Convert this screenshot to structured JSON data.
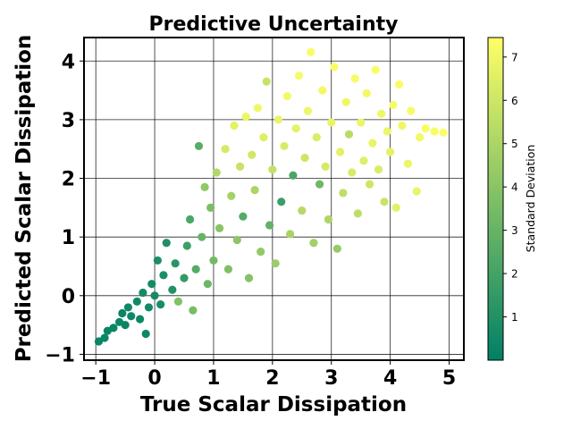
{
  "chart_data": {
    "type": "scatter",
    "title": "Predictive Uncertainty",
    "xlabel": "True Scalar Dissipation",
    "ylabel": "Predicted Scalar Dissipation",
    "xlim": [
      -1.2,
      5.25
    ],
    "ylim": [
      -1.1,
      4.4
    ],
    "x_ticks": [
      -1,
      0,
      1,
      2,
      3,
      4,
      5
    ],
    "y_ticks": [
      -1,
      0,
      1,
      2,
      3,
      4
    ],
    "grid": true,
    "colorbar": {
      "label": "Standard Deviation",
      "range": [
        0,
        7.45
      ],
      "ticks": [
        1,
        2,
        3,
        4,
        5,
        6,
        7
      ],
      "colormap": "summer",
      "color_low": "#008066",
      "color_high": "#ffff66"
    },
    "points": [
      {
        "x": -0.95,
        "y": -0.78,
        "s": 0.3
      },
      {
        "x": -0.85,
        "y": -0.72,
        "s": 0.3
      },
      {
        "x": -0.8,
        "y": -0.6,
        "s": 0.3
      },
      {
        "x": -0.7,
        "y": -0.55,
        "s": 0.3
      },
      {
        "x": -0.6,
        "y": -0.45,
        "s": 0.4
      },
      {
        "x": -0.55,
        "y": -0.3,
        "s": 0.3
      },
      {
        "x": -0.5,
        "y": -0.5,
        "s": 0.3
      },
      {
        "x": -0.45,
        "y": -0.2,
        "s": 0.5
      },
      {
        "x": -0.4,
        "y": -0.35,
        "s": 0.4
      },
      {
        "x": -0.3,
        "y": -0.1,
        "s": 0.5
      },
      {
        "x": -0.25,
        "y": -0.4,
        "s": 0.4
      },
      {
        "x": -0.2,
        "y": 0.05,
        "s": 0.6
      },
      {
        "x": -0.15,
        "y": -0.65,
        "s": 0.4
      },
      {
        "x": -0.1,
        "y": -0.2,
        "s": 0.5
      },
      {
        "x": -0.05,
        "y": 0.2,
        "s": 0.6
      },
      {
        "x": 0.0,
        "y": 0.0,
        "s": 0.6
      },
      {
        "x": 0.05,
        "y": 0.6,
        "s": 0.8
      },
      {
        "x": 0.1,
        "y": -0.15,
        "s": 0.7
      },
      {
        "x": 0.15,
        "y": 0.35,
        "s": 0.8
      },
      {
        "x": 0.2,
        "y": 0.9,
        "s": 0.9
      },
      {
        "x": 0.3,
        "y": 0.1,
        "s": 1.0
      },
      {
        "x": 0.35,
        "y": 0.55,
        "s": 1.2
      },
      {
        "x": 0.4,
        "y": -0.1,
        "s": 3.8
      },
      {
        "x": 0.5,
        "y": 0.3,
        "s": 1.5
      },
      {
        "x": 0.55,
        "y": 0.85,
        "s": 1.8
      },
      {
        "x": 0.6,
        "y": 1.3,
        "s": 2.2
      },
      {
        "x": 0.65,
        "y": -0.25,
        "s": 3.5
      },
      {
        "x": 0.7,
        "y": 0.45,
        "s": 2.5
      },
      {
        "x": 0.75,
        "y": 2.55,
        "s": 2.6
      },
      {
        "x": 0.8,
        "y": 1.0,
        "s": 3.0
      },
      {
        "x": 0.85,
        "y": 1.85,
        "s": 4.2
      },
      {
        "x": 0.9,
        "y": 0.2,
        "s": 3.2
      },
      {
        "x": 0.95,
        "y": 1.5,
        "s": 3.6
      },
      {
        "x": 1.0,
        "y": 0.6,
        "s": 3.4
      },
      {
        "x": 1.05,
        "y": 2.1,
        "s": 5.2
      },
      {
        "x": 1.1,
        "y": 1.15,
        "s": 4.0
      },
      {
        "x": 1.2,
        "y": 2.5,
        "s": 6.2
      },
      {
        "x": 1.25,
        "y": 0.45,
        "s": 3.7
      },
      {
        "x": 1.3,
        "y": 1.7,
        "s": 4.8
      },
      {
        "x": 1.35,
        "y": 2.9,
        "s": 6.6
      },
      {
        "x": 1.4,
        "y": 0.95,
        "s": 4.1
      },
      {
        "x": 1.45,
        "y": 2.2,
        "s": 5.8
      },
      {
        "x": 1.5,
        "y": 1.35,
        "s": 2.5
      },
      {
        "x": 1.55,
        "y": 3.05,
        "s": 6.9
      },
      {
        "x": 1.6,
        "y": 0.3,
        "s": 3.9
      },
      {
        "x": 1.65,
        "y": 2.4,
        "s": 6.1
      },
      {
        "x": 1.7,
        "y": 1.8,
        "s": 5.0
      },
      {
        "x": 1.75,
        "y": 3.2,
        "s": 7.0
      },
      {
        "x": 1.8,
        "y": 0.75,
        "s": 4.3
      },
      {
        "x": 1.85,
        "y": 2.7,
        "s": 6.5
      },
      {
        "x": 1.9,
        "y": 3.65,
        "s": 5.8
      },
      {
        "x": 1.95,
        "y": 1.2,
        "s": 2.9
      },
      {
        "x": 2.0,
        "y": 2.15,
        "s": 5.7
      },
      {
        "x": 2.05,
        "y": 0.55,
        "s": 4.5
      },
      {
        "x": 2.1,
        "y": 3.0,
        "s": 6.8
      },
      {
        "x": 2.15,
        "y": 1.6,
        "s": 1.8
      },
      {
        "x": 2.2,
        "y": 2.55,
        "s": 6.3
      },
      {
        "x": 2.25,
        "y": 3.4,
        "s": 7.1
      },
      {
        "x": 2.3,
        "y": 1.05,
        "s": 4.9
      },
      {
        "x": 2.35,
        "y": 2.05,
        "s": 2.2
      },
      {
        "x": 2.4,
        "y": 2.85,
        "s": 6.7
      },
      {
        "x": 2.45,
        "y": 3.75,
        "s": 7.2
      },
      {
        "x": 2.5,
        "y": 1.45,
        "s": 5.3
      },
      {
        "x": 2.55,
        "y": 2.35,
        "s": 6.0
      },
      {
        "x": 2.6,
        "y": 3.15,
        "s": 6.9
      },
      {
        "x": 2.65,
        "y": 4.15,
        "s": 7.3
      },
      {
        "x": 2.7,
        "y": 0.9,
        "s": 4.7
      },
      {
        "x": 2.75,
        "y": 2.7,
        "s": 6.4
      },
      {
        "x": 2.8,
        "y": 1.9,
        "s": 3.3
      },
      {
        "x": 2.85,
        "y": 3.5,
        "s": 7.1
      },
      {
        "x": 2.9,
        "y": 2.2,
        "s": 6.2
      },
      {
        "x": 2.95,
        "y": 1.3,
        "s": 5.1
      },
      {
        "x": 3.0,
        "y": 2.95,
        "s": 6.8
      },
      {
        "x": 3.05,
        "y": 3.9,
        "s": 7.3
      },
      {
        "x": 3.1,
        "y": 0.8,
        "s": 4.4
      },
      {
        "x": 3.15,
        "y": 2.45,
        "s": 6.6
      },
      {
        "x": 3.2,
        "y": 1.75,
        "s": 5.6
      },
      {
        "x": 3.25,
        "y": 3.3,
        "s": 7.0
      },
      {
        "x": 3.3,
        "y": 2.75,
        "s": 5.4
      },
      {
        "x": 3.35,
        "y": 2.1,
        "s": 6.3
      },
      {
        "x": 3.4,
        "y": 3.7,
        "s": 7.2
      },
      {
        "x": 3.45,
        "y": 1.4,
        "s": 5.5
      },
      {
        "x": 3.5,
        "y": 2.95,
        "s": 6.9
      },
      {
        "x": 3.55,
        "y": 2.3,
        "s": 6.5
      },
      {
        "x": 3.6,
        "y": 3.45,
        "s": 7.1
      },
      {
        "x": 3.65,
        "y": 1.9,
        "s": 6.0
      },
      {
        "x": 3.7,
        "y": 2.6,
        "s": 6.8
      },
      {
        "x": 3.75,
        "y": 3.85,
        "s": 7.3
      },
      {
        "x": 3.8,
        "y": 2.15,
        "s": 6.4
      },
      {
        "x": 3.85,
        "y": 3.1,
        "s": 7.0
      },
      {
        "x": 3.9,
        "y": 1.6,
        "s": 5.9
      },
      {
        "x": 3.95,
        "y": 2.8,
        "s": 6.9
      },
      {
        "x": 4.0,
        "y": 2.45,
        "s": 6.7
      },
      {
        "x": 4.05,
        "y": 3.25,
        "s": 7.2
      },
      {
        "x": 4.1,
        "y": 1.5,
        "s": 6.6
      },
      {
        "x": 4.15,
        "y": 3.6,
        "s": 7.3
      },
      {
        "x": 4.2,
        "y": 2.9,
        "s": 7.0
      },
      {
        "x": 4.3,
        "y": 2.25,
        "s": 6.9
      },
      {
        "x": 4.35,
        "y": 3.15,
        "s": 7.2
      },
      {
        "x": 4.45,
        "y": 1.78,
        "s": 6.8
      },
      {
        "x": 4.5,
        "y": 2.7,
        "s": 7.1
      },
      {
        "x": 4.6,
        "y": 2.85,
        "s": 7.3
      },
      {
        "x": 4.75,
        "y": 2.8,
        "s": 7.3
      },
      {
        "x": 4.9,
        "y": 2.78,
        "s": 7.4
      }
    ]
  }
}
